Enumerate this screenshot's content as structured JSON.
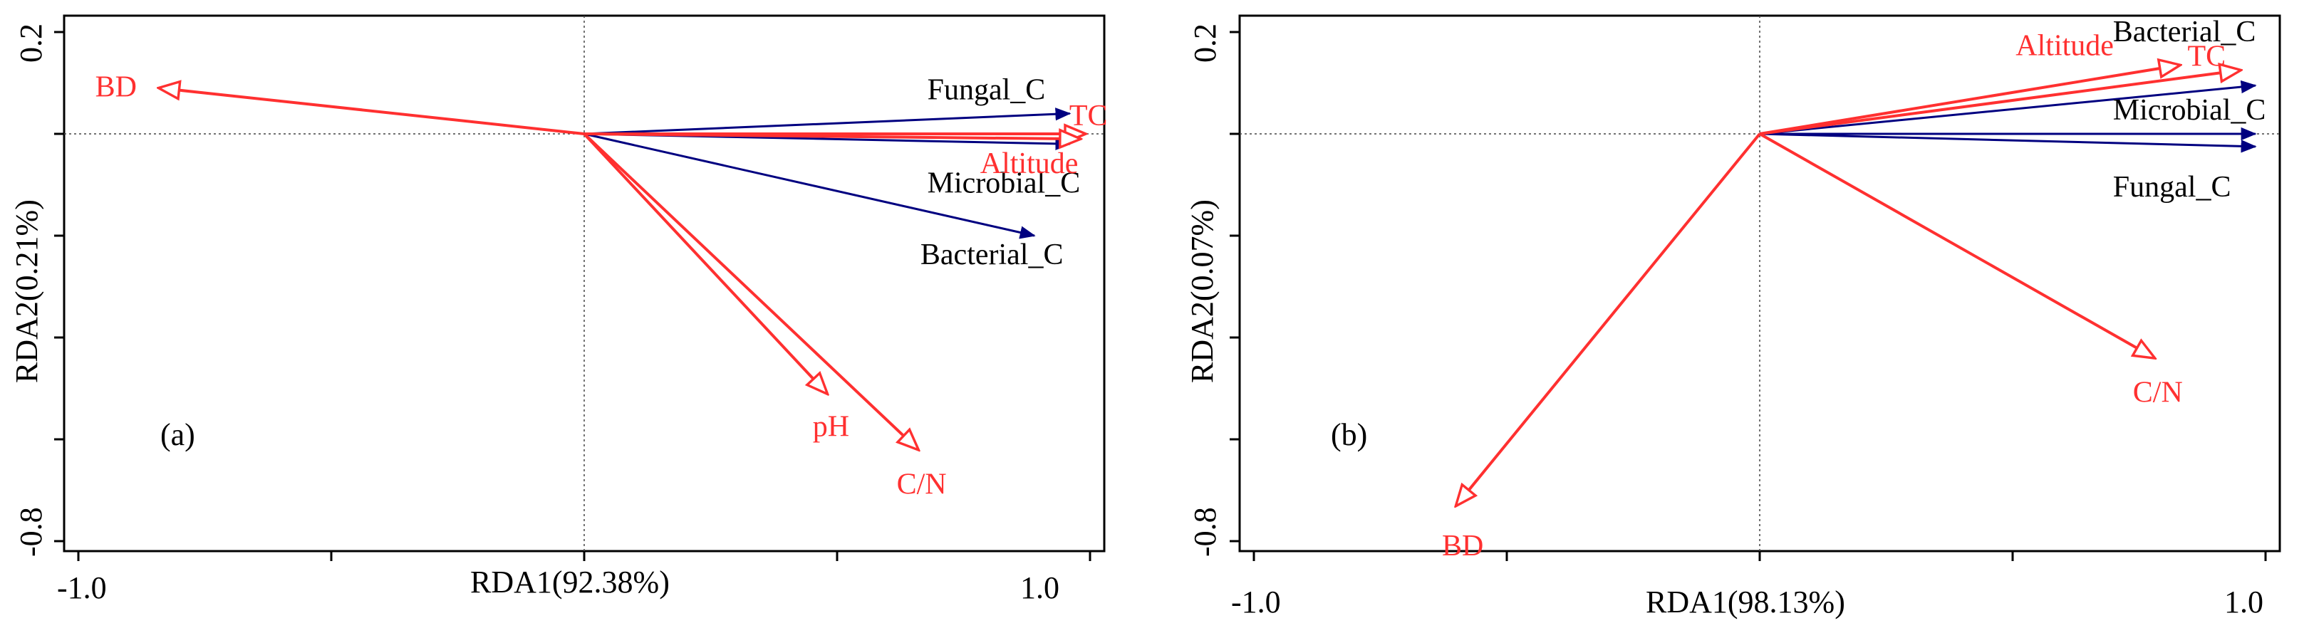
{
  "chart_data": [
    {
      "type": "rda_biplot",
      "panel_label": "(a)",
      "xlabel": "RDA1(92.38%)",
      "ylabel": "RDA2(0.21%)",
      "xlim": [
        -1.0,
        1.0
      ],
      "ylim": [
        -0.8,
        0.2
      ],
      "x_tick_labels": [
        "-1.0",
        "1.0"
      ],
      "y_tick_labels": [
        "0.2",
        "-0.8"
      ],
      "colors": {
        "response": "#000080",
        "explanatory": "#ff3030"
      },
      "response_vectors": [
        {
          "name": "Fungal_C",
          "x": 0.96,
          "y": 0.04
        },
        {
          "name": "Microbial_C",
          "x": 0.96,
          "y": -0.02
        },
        {
          "name": "Bacterial_C",
          "x": 0.89,
          "y": -0.2
        }
      ],
      "explanatory_vectors": [
        {
          "name": "BD",
          "x": -0.84,
          "y": 0.09
        },
        {
          "name": "TC",
          "x": 0.99,
          "y": 0.0
        },
        {
          "name": "Altitude",
          "x": 0.98,
          "y": -0.01
        },
        {
          "name": "pH",
          "x": 0.48,
          "y": -0.51
        },
        {
          "name": "C/N",
          "x": 0.66,
          "y": -0.62
        }
      ]
    },
    {
      "type": "rda_biplot",
      "panel_label": "(b)",
      "xlabel": "RDA1(98.13%)",
      "ylabel": "RDA2(0.07%)",
      "xlim": [
        -1.0,
        1.0
      ],
      "ylim": [
        -0.8,
        0.2
      ],
      "x_tick_labels": [
        "-1.0",
        "1.0"
      ],
      "y_tick_labels": [
        "0.2",
        "-0.8"
      ],
      "colors": {
        "response": "#000080",
        "explanatory": "#ff3030"
      },
      "response_vectors": [
        {
          "name": "Bacterial_C",
          "x": 0.98,
          "y": 0.095
        },
        {
          "name": "Microbial_C",
          "x": 0.98,
          "y": 0.0
        },
        {
          "name": "Fungal_C",
          "x": 0.98,
          "y": -0.025
        }
      ],
      "explanatory_vectors": [
        {
          "name": "Altitude",
          "x": 0.83,
          "y": 0.135
        },
        {
          "name": "TC",
          "x": 0.95,
          "y": 0.125
        },
        {
          "name": "C/N",
          "x": 0.78,
          "y": -0.44
        },
        {
          "name": "BD",
          "x": -0.6,
          "y": -0.73
        }
      ]
    }
  ]
}
